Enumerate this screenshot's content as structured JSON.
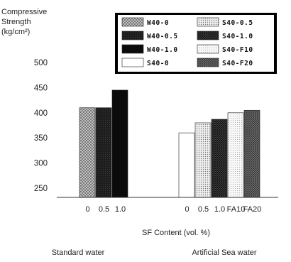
{
  "chart_data": {
    "type": "bar",
    "title": "",
    "ylabel_lines": [
      "Compressive",
      "Strength",
      "(kg/cm²)"
    ],
    "xlabel": "SF Content (vol. %)",
    "ylim": [
      250,
      500
    ],
    "yticks": [
      250,
      300,
      350,
      400,
      450,
      500
    ],
    "legend_position": "top-right",
    "groups": [
      {
        "name": "Standard water",
        "bars": [
          {
            "series": "W40-0",
            "category": "0",
            "value": 410
          },
          {
            "series": "W40-0.5",
            "category": "0.5",
            "value": 410
          },
          {
            "series": "W40-1.0",
            "category": "1.0",
            "value": 445
          }
        ]
      },
      {
        "name": "Artificial Sea water",
        "bars": [
          {
            "series": "S40-0",
            "category": "0",
            "value": 360
          },
          {
            "series": "S40-0.5",
            "category": "0.5",
            "value": 380
          },
          {
            "series": "S40-1.0",
            "category": "1.0",
            "value": 387
          },
          {
            "series": "S40-F10",
            "category": "FA10",
            "value": 400
          },
          {
            "series": "S40-F20",
            "category": "FA20",
            "value": 405
          }
        ]
      }
    ],
    "series": [
      {
        "name": "W40-0",
        "pattern": "crosshatch-light"
      },
      {
        "name": "W40-0.5",
        "pattern": "solid-dark"
      },
      {
        "name": "W40-1.0",
        "pattern": "solid-black"
      },
      {
        "name": "S40-0",
        "pattern": "white"
      },
      {
        "name": "S40-0.5",
        "pattern": "dots-light"
      },
      {
        "name": "S40-1.0",
        "pattern": "crosshatch-dark"
      },
      {
        "name": "S40-F10",
        "pattern": "dots-fine"
      },
      {
        "name": "S40-F20",
        "pattern": "crosshatch-medium"
      }
    ],
    "legend_order": [
      "W40-0",
      "S40-0.5",
      "W40-0.5",
      "S40-1.0",
      "W40-1.0",
      "S40-F10",
      "S40-0",
      "S40-F20"
    ]
  }
}
